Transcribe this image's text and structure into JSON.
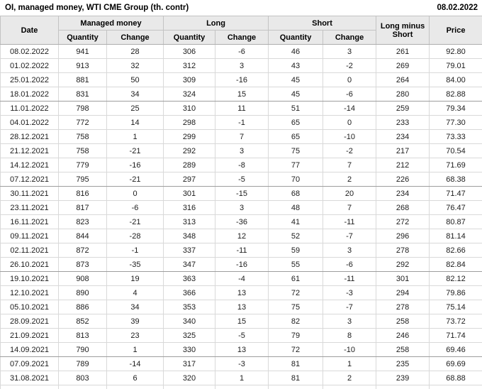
{
  "header": {
    "title": "OI, managed money, WTI CME Group (th. contr)",
    "report_date": "08.02.2022"
  },
  "colors": {
    "positive": "#009900",
    "negative": "#cc3333",
    "header_bg": "#e9e9e9",
    "grid": "#d9d9d9"
  },
  "table": {
    "headers": {
      "date": "Date",
      "managed_money": "Managed money",
      "long": "Long",
      "short": "Short",
      "quantity": "Quantity",
      "change": "Change",
      "long_minus_short": "Long minus Short",
      "price": "Price"
    },
    "rows": [
      {
        "date": "08.02.2022",
        "mm_qty": "941",
        "mm_chg": "28",
        "mm_chg_color": "green",
        "long_qty": "306",
        "long_chg": "-6",
        "long_chg_color": "red",
        "short_qty": "46",
        "short_chg": "3",
        "short_chg_color": "green",
        "long_minus_short": "261",
        "price": "92.80"
      },
      {
        "date": "01.02.2022",
        "mm_qty": "913",
        "mm_chg": "32",
        "mm_chg_color": "green",
        "long_qty": "312",
        "long_chg": "3",
        "long_chg_color": "green",
        "short_qty": "43",
        "short_chg": "-2",
        "short_chg_color": "red",
        "long_minus_short": "269",
        "price": "79.01"
      },
      {
        "date": "25.01.2022",
        "mm_qty": "881",
        "mm_chg": "50",
        "mm_chg_color": "green",
        "long_qty": "309",
        "long_chg": "-16",
        "long_chg_color": "red",
        "short_qty": "45",
        "short_chg": "0",
        "short_chg_color": "green",
        "long_minus_short": "264",
        "price": "84.00"
      },
      {
        "date": "18.01.2022",
        "mm_qty": "831",
        "mm_chg": "34",
        "mm_chg_color": "green",
        "long_qty": "324",
        "long_chg": "15",
        "long_chg_color": "green",
        "short_qty": "45",
        "short_chg": "-6",
        "short_chg_color": "red",
        "long_minus_short": "280",
        "price": "82.88"
      },
      {
        "date": "11.01.2022",
        "mm_qty": "798",
        "mm_chg": "25",
        "mm_chg_color": "green",
        "long_qty": "310",
        "long_chg": "11",
        "long_chg_color": "green",
        "short_qty": "51",
        "short_chg": "-14",
        "short_chg_color": "red",
        "long_minus_short": "259",
        "price": "79.34"
      },
      {
        "date": "04.01.2022",
        "mm_qty": "772",
        "mm_chg": "14",
        "mm_chg_color": "green",
        "long_qty": "298",
        "long_chg": "-1",
        "long_chg_color": "red",
        "short_qty": "65",
        "short_chg": "0",
        "short_chg_color": "red",
        "long_minus_short": "233",
        "price": "77.30"
      },
      {
        "date": "28.12.2021",
        "mm_qty": "758",
        "mm_chg": "1",
        "mm_chg_color": "green",
        "long_qty": "299",
        "long_chg": "7",
        "long_chg_color": "green",
        "short_qty": "65",
        "short_chg": "-10",
        "short_chg_color": "red",
        "long_minus_short": "234",
        "price": "73.33"
      },
      {
        "date": "21.12.2021",
        "mm_qty": "758",
        "mm_chg": "-21",
        "mm_chg_color": "red",
        "long_qty": "292",
        "long_chg": "3",
        "long_chg_color": "green",
        "short_qty": "75",
        "short_chg": "-2",
        "short_chg_color": "red",
        "long_minus_short": "217",
        "price": "70.54"
      },
      {
        "date": "14.12.2021",
        "mm_qty": "779",
        "mm_chg": "-16",
        "mm_chg_color": "red",
        "long_qty": "289",
        "long_chg": "-8",
        "long_chg_color": "red",
        "short_qty": "77",
        "short_chg": "7",
        "short_chg_color": "green",
        "long_minus_short": "212",
        "price": "71.69"
      },
      {
        "date": "07.12.2021",
        "mm_qty": "795",
        "mm_chg": "-21",
        "mm_chg_color": "red",
        "long_qty": "297",
        "long_chg": "-5",
        "long_chg_color": "red",
        "short_qty": "70",
        "short_chg": "2",
        "short_chg_color": "green",
        "long_minus_short": "226",
        "price": "68.38"
      },
      {
        "date": "30.11.2021",
        "mm_qty": "816",
        "mm_chg": "0",
        "mm_chg_color": "red",
        "long_qty": "301",
        "long_chg": "-15",
        "long_chg_color": "red",
        "short_qty": "68",
        "short_chg": "20",
        "short_chg_color": "green",
        "long_minus_short": "234",
        "price": "71.47"
      },
      {
        "date": "23.11.2021",
        "mm_qty": "817",
        "mm_chg": "-6",
        "mm_chg_color": "red",
        "long_qty": "316",
        "long_chg": "3",
        "long_chg_color": "green",
        "short_qty": "48",
        "short_chg": "7",
        "short_chg_color": "green",
        "long_minus_short": "268",
        "price": "76.47"
      },
      {
        "date": "16.11.2021",
        "mm_qty": "823",
        "mm_chg": "-21",
        "mm_chg_color": "red",
        "long_qty": "313",
        "long_chg": "-36",
        "long_chg_color": "red",
        "short_qty": "41",
        "short_chg": "-11",
        "short_chg_color": "red",
        "long_minus_short": "272",
        "price": "80.87"
      },
      {
        "date": "09.11.2021",
        "mm_qty": "844",
        "mm_chg": "-28",
        "mm_chg_color": "red",
        "long_qty": "348",
        "long_chg": "12",
        "long_chg_color": "green",
        "short_qty": "52",
        "short_chg": "-7",
        "short_chg_color": "red",
        "long_minus_short": "296",
        "price": "81.14"
      },
      {
        "date": "02.11.2021",
        "mm_qty": "872",
        "mm_chg": "-1",
        "mm_chg_color": "red",
        "long_qty": "337",
        "long_chg": "-11",
        "long_chg_color": "red",
        "short_qty": "59",
        "short_chg": "3",
        "short_chg_color": "green",
        "long_minus_short": "278",
        "price": "82.66"
      },
      {
        "date": "26.10.2021",
        "mm_qty": "873",
        "mm_chg": "-35",
        "mm_chg_color": "red",
        "long_qty": "347",
        "long_chg": "-16",
        "long_chg_color": "red",
        "short_qty": "55",
        "short_chg": "-6",
        "short_chg_color": "red",
        "long_minus_short": "292",
        "price": "82.84"
      },
      {
        "date": "19.10.2021",
        "mm_qty": "908",
        "mm_chg": "19",
        "mm_chg_color": "green",
        "long_qty": "363",
        "long_chg": "-4",
        "long_chg_color": "red",
        "short_qty": "61",
        "short_chg": "-11",
        "short_chg_color": "red",
        "long_minus_short": "301",
        "price": "82.12"
      },
      {
        "date": "12.10.2021",
        "mm_qty": "890",
        "mm_chg": "4",
        "mm_chg_color": "green",
        "long_qty": "366",
        "long_chg": "13",
        "long_chg_color": "green",
        "short_qty": "72",
        "short_chg": "-3",
        "short_chg_color": "red",
        "long_minus_short": "294",
        "price": "79.86"
      },
      {
        "date": "05.10.2021",
        "mm_qty": "886",
        "mm_chg": "34",
        "mm_chg_color": "green",
        "long_qty": "353",
        "long_chg": "13",
        "long_chg_color": "green",
        "short_qty": "75",
        "short_chg": "-7",
        "short_chg_color": "red",
        "long_minus_short": "278",
        "price": "75.14"
      },
      {
        "date": "28.09.2021",
        "mm_qty": "852",
        "mm_chg": "39",
        "mm_chg_color": "green",
        "long_qty": "340",
        "long_chg": "15",
        "long_chg_color": "green",
        "short_qty": "82",
        "short_chg": "3",
        "short_chg_color": "green",
        "long_minus_short": "258",
        "price": "73.72"
      },
      {
        "date": "21.09.2021",
        "mm_qty": "813",
        "mm_chg": "23",
        "mm_chg_color": "green",
        "long_qty": "325",
        "long_chg": "-5",
        "long_chg_color": "red",
        "short_qty": "79",
        "short_chg": "8",
        "short_chg_color": "green",
        "long_minus_short": "246",
        "price": "71.74"
      },
      {
        "date": "14.09.2021",
        "mm_qty": "790",
        "mm_chg": "1",
        "mm_chg_color": "green",
        "long_qty": "330",
        "long_chg": "13",
        "long_chg_color": "green",
        "short_qty": "72",
        "short_chg": "-10",
        "short_chg_color": "red",
        "long_minus_short": "258",
        "price": "69.46"
      },
      {
        "date": "07.09.2021",
        "mm_qty": "789",
        "mm_chg": "-14",
        "mm_chg_color": "red",
        "long_qty": "317",
        "long_chg": "-3",
        "long_chg_color": "red",
        "short_qty": "81",
        "short_chg": "1",
        "short_chg_color": "green",
        "long_minus_short": "235",
        "price": "69.69"
      },
      {
        "date": "31.08.2021",
        "mm_qty": "803",
        "mm_chg": "6",
        "mm_chg_color": "green",
        "long_qty": "320",
        "long_chg": "1",
        "long_chg_color": "green",
        "short_qty": "81",
        "short_chg": "2",
        "short_chg_color": "green",
        "long_minus_short": "239",
        "price": "68.88"
      }
    ]
  }
}
